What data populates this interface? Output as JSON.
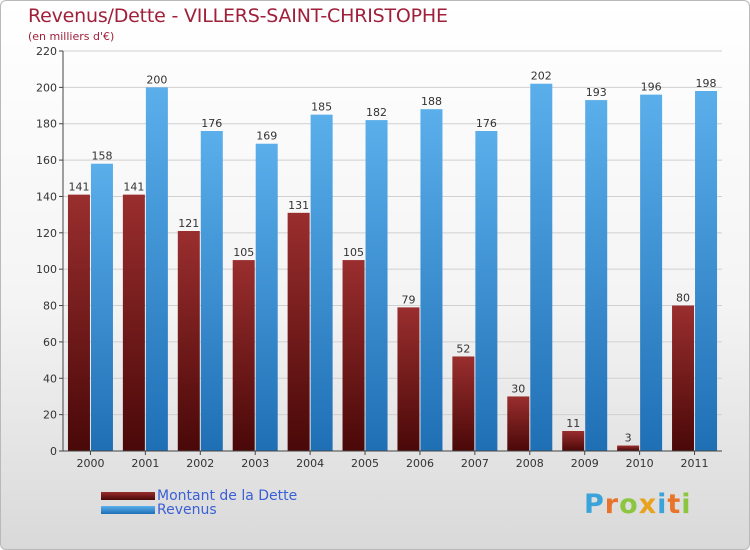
{
  "header": {
    "title": "Revenus/Dette - VILLERS-SAINT-CHRISTOPHE",
    "subtitle": "(en milliers d'€)"
  },
  "legend": {
    "items": [
      {
        "label": "Montant de la Dette",
        "color": "#7a1717"
      },
      {
        "label": "Revenus",
        "color": "#4ca1e6"
      }
    ]
  },
  "brand": {
    "text": "Proxiti",
    "letters": [
      {
        "ch": "P",
        "color": "#3aa3d9"
      },
      {
        "ch": "r",
        "color": "#e8732a"
      },
      {
        "ch": "o",
        "color": "#8cc63f"
      },
      {
        "ch": "x",
        "color": "#e8a21c"
      },
      {
        "ch": "i",
        "color": "#3aa3d9"
      },
      {
        "ch": "t",
        "color": "#e8732a"
      },
      {
        "ch": "i",
        "color": "#8cc63f"
      }
    ]
  },
  "colors": {
    "debt_dark": "#4a0808",
    "debt_light": "#9a2e2e",
    "revenue_dark": "#1f6fb5",
    "revenue_light": "#5aafeb",
    "axis": "#444444",
    "grid": "#d0d0d0"
  },
  "chart_data": {
    "type": "bar",
    "title": "Revenus/Dette - VILLERS-SAINT-CHRISTOPHE",
    "subtitle": "(en milliers d'€)",
    "categories": [
      "2000",
      "2001",
      "2002",
      "2003",
      "2004",
      "2005",
      "2006",
      "2007",
      "2008",
      "2009",
      "2010",
      "2011"
    ],
    "series": [
      {
        "name": "Montant de la Dette",
        "values": [
          141,
          141,
          121,
          105,
          131,
          105,
          79,
          52,
          30,
          11,
          3,
          80
        ]
      },
      {
        "name": "Revenus",
        "values": [
          158,
          200,
          176,
          169,
          185,
          182,
          188,
          176,
          202,
          193,
          196,
          198
        ]
      }
    ],
    "ylim": [
      0,
      220
    ],
    "yticks": [
      0,
      20,
      40,
      60,
      80,
      100,
      120,
      140,
      160,
      180,
      200,
      220
    ],
    "grid": true,
    "legend_position": "bottom-left"
  }
}
